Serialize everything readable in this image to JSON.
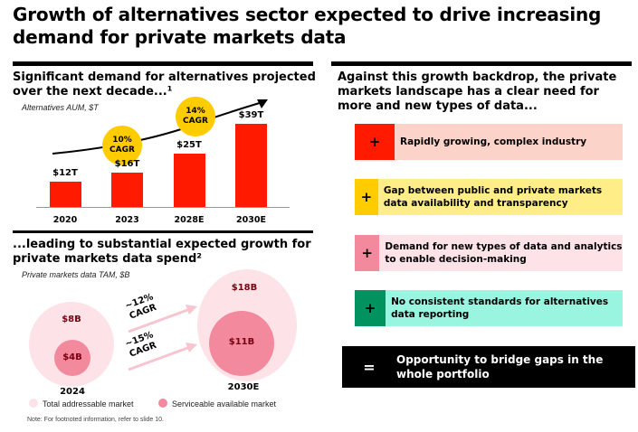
{
  "slide": {
    "title": "Growth of alternatives sector expected to drive increasing demand for private markets data",
    "note": "Note: For footnoted information, refer to slide 10."
  },
  "aum_panel": {
    "heading_line1": "Significant demand for alternatives projected",
    "heading_line2": "over the next decade...¹",
    "subtitle": "Alternatives AUM, $T",
    "cagr_badges": [
      "10%\nCAGR",
      "14%\nCAGR"
    ],
    "colors": {
      "bar": "#ff1a00",
      "badge": "#ffcc00"
    }
  },
  "tam_panel": {
    "heading_line1": "...leading to substantial expected growth for",
    "heading_line2": "private markets data spend²",
    "subtitle": "Private markets data TAM, $B",
    "years": [
      "2024",
      "2030E"
    ],
    "tam_labels": [
      "$8B",
      "$18B"
    ],
    "sam_labels": [
      "$4B",
      "$11B"
    ],
    "growth_labels": [
      "~12%\nCAGR",
      "~15%\nCAGR"
    ],
    "legend": {
      "tam": "Total addressable market",
      "sam": "Serviceable available market"
    },
    "colors": {
      "tam": "#fde3e8",
      "sam": "#f2899d"
    }
  },
  "needs_panel": {
    "heading": "Against this growth backdrop, the private markets landscape has a clear need for more and new types of data...",
    "items": [
      {
        "text": "Rapidly growing, complex industry",
        "plus": "+",
        "bg": "#fbd3c9",
        "accent": "#ff1a00",
        "plus_color": "#000000"
      },
      {
        "text": "Gap between public and private markets data availability and transparency",
        "plus": "+",
        "bg": "#ffee88",
        "accent": "#ffcc00",
        "plus_color": "#000000"
      },
      {
        "text": "Demand for new types of data and analytics to enable decision-making",
        "plus": "+",
        "bg": "#fde3e8",
        "accent": "#f2899d",
        "plus_color": "#000000"
      },
      {
        "text": "No consistent standards for alternatives data reporting",
        "plus": "+",
        "bg": "#99f5e0",
        "accent": "#00935f",
        "plus_color": "#000000"
      }
    ],
    "conclusion_symbol": "=",
    "conclusion": "Opportunity to bridge gaps in the whole portfolio"
  },
  "chart_data": {
    "type": "bar",
    "title": "Alternatives AUM, $T",
    "categories": [
      "2020",
      "2023",
      "2028E",
      "2030E"
    ],
    "values": [
      12,
      16,
      25,
      39
    ],
    "value_labels": [
      "$12T",
      "$16T",
      "$25T",
      "$39T"
    ],
    "ylabel": "",
    "ylim": [
      0,
      39
    ],
    "grid": false,
    "legend": "none"
  }
}
